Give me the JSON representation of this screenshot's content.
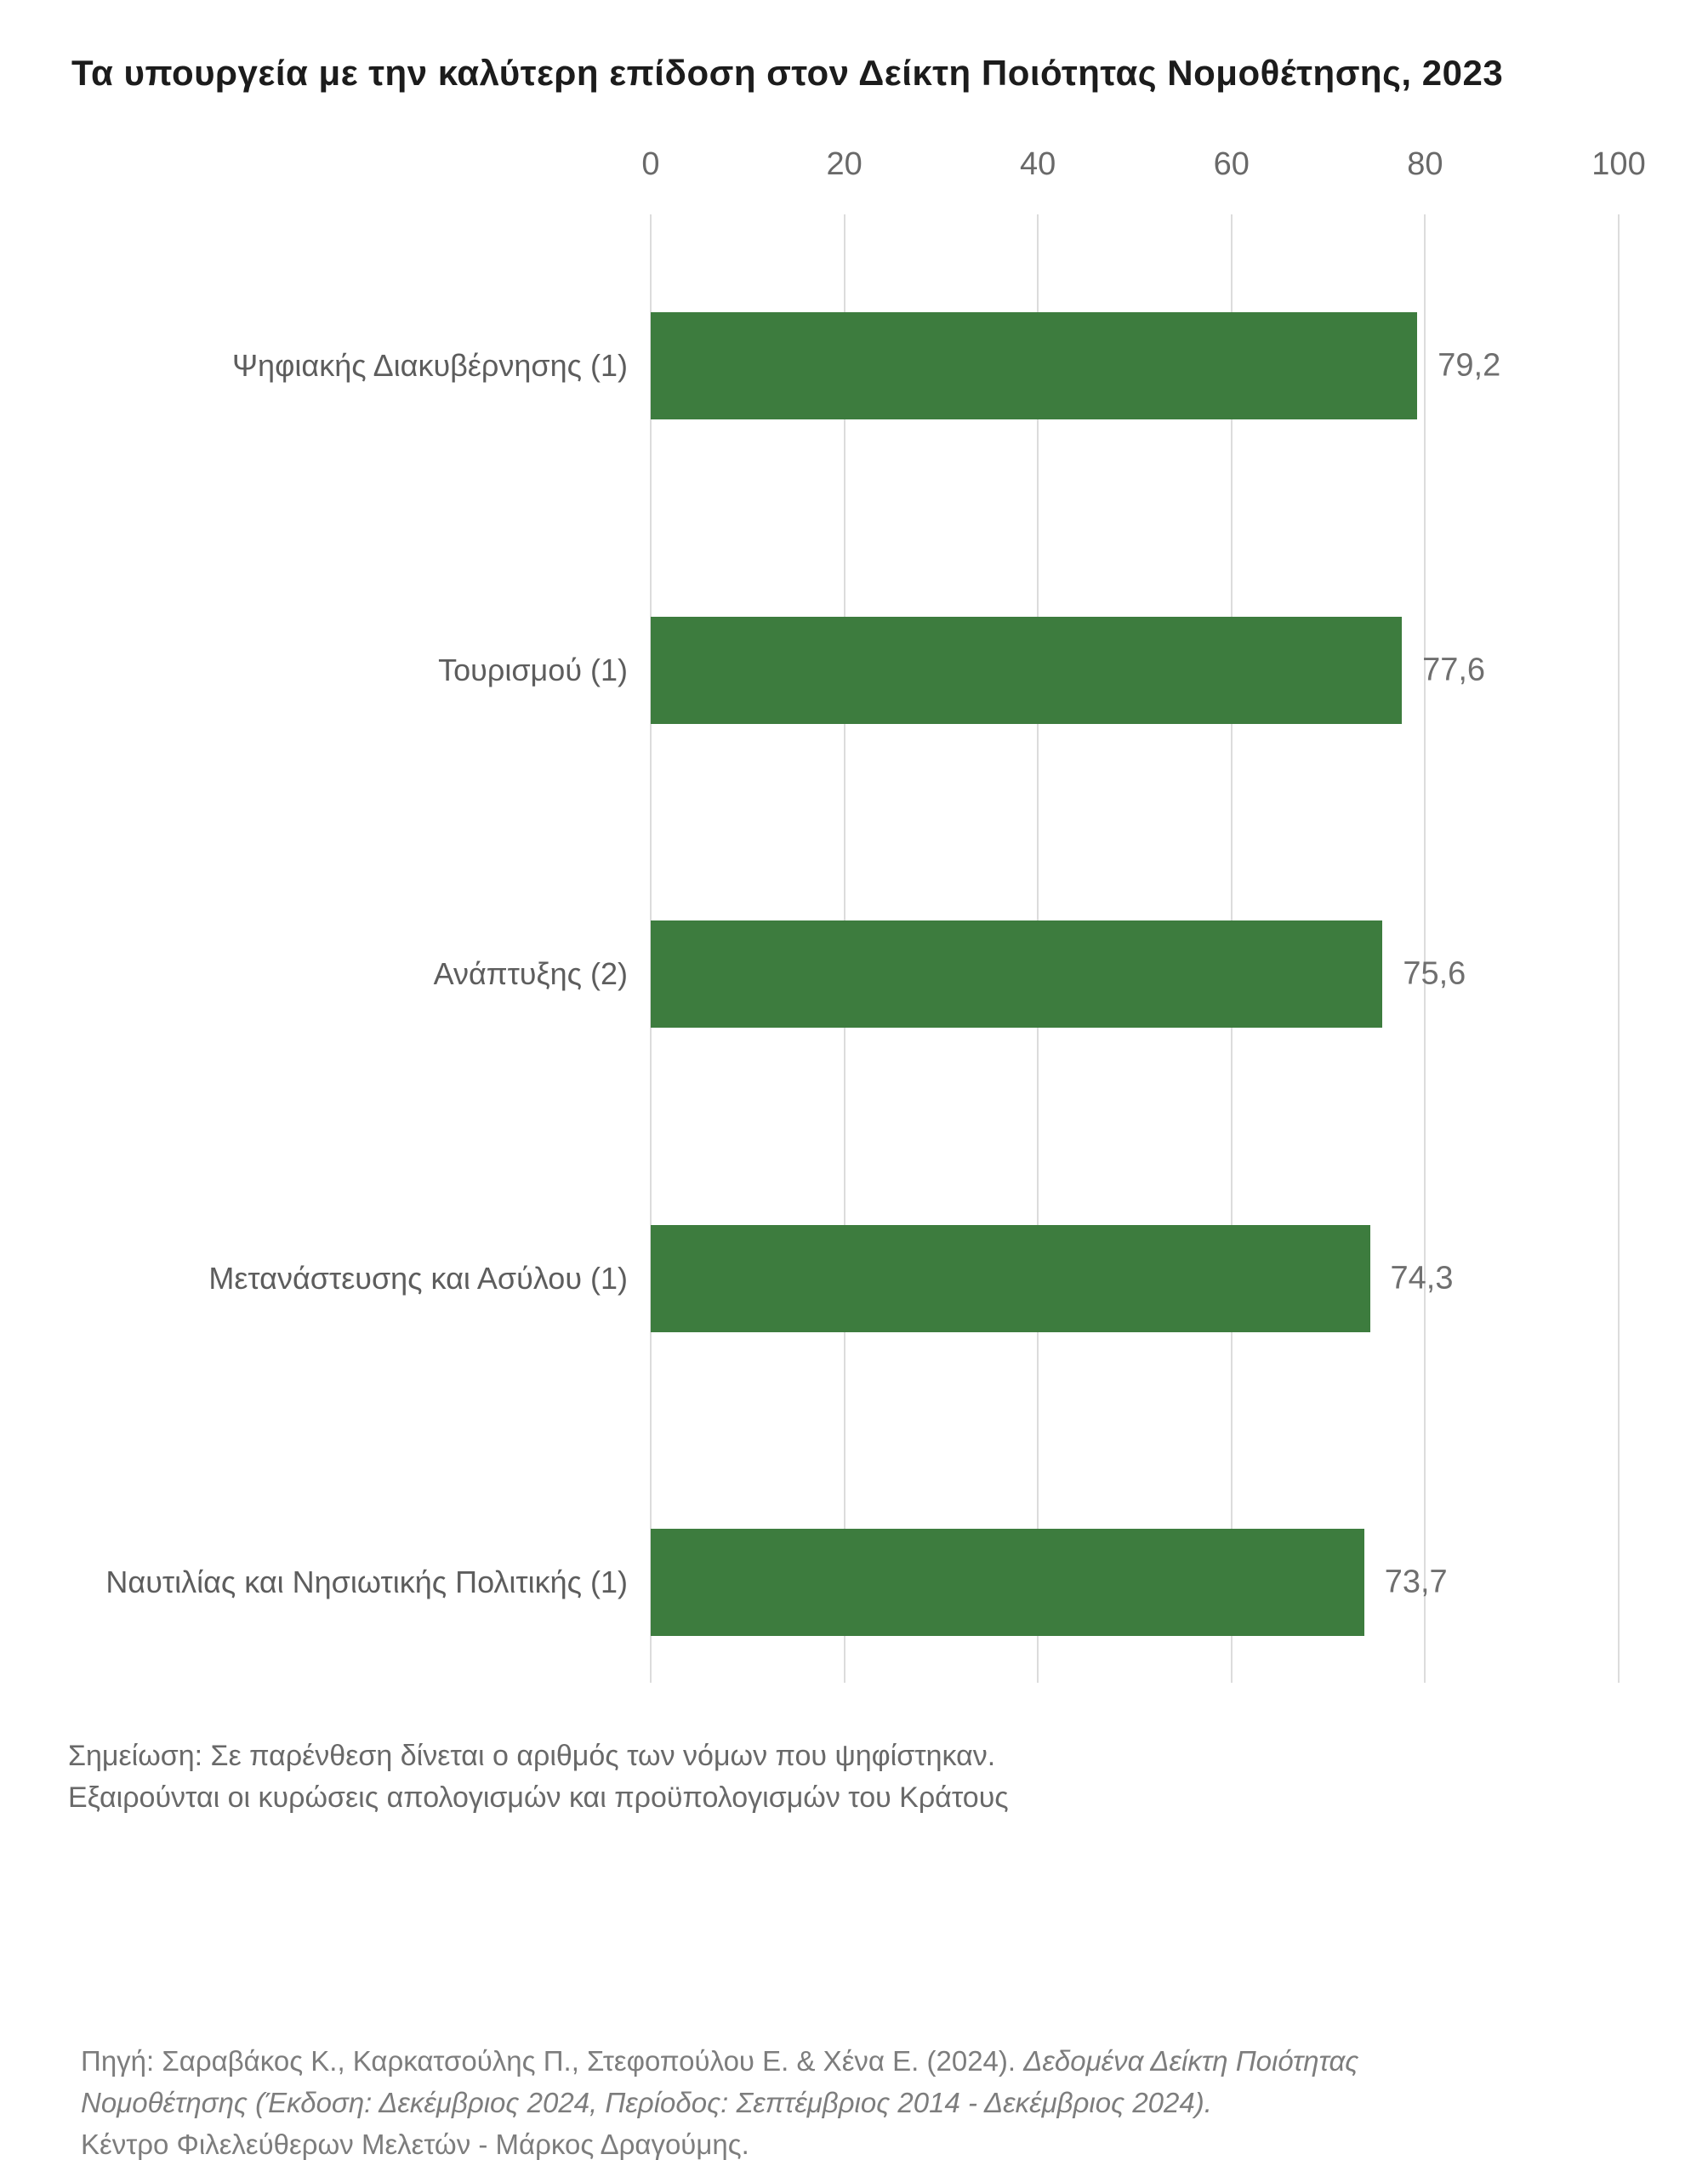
{
  "title": "Τα υπουργεία με την καλύτερη επίδοση στον Δείκτη Ποιότητας Νομοθέτησης, 2023",
  "chart_data": {
    "type": "bar",
    "orientation": "horizontal",
    "title": "Τα υπουργεία με την καλύτερη επίδοση στον Δείκτη Ποιότητας Νομοθέτησης, 2023",
    "categories": [
      "Ψηφιακής Διακυβέρνησης (1)",
      "Τουρισμού (1)",
      "Ανάπτυξης (2)",
      "Μετανάστευσης και Ασύλου (1)",
      "Ναυτιλίας και Νησιωτικής Πολιτικής (1)"
    ],
    "values": [
      79.2,
      77.6,
      75.6,
      74.3,
      73.7
    ],
    "value_labels": [
      "79,2",
      "77,6",
      "75,6",
      "74,3",
      "73,7"
    ],
    "xlim": [
      0,
      100
    ],
    "xticks": [
      0,
      20,
      40,
      60,
      80,
      100
    ],
    "xtick_labels": [
      "0",
      "20",
      "40",
      "60",
      "80",
      "100"
    ],
    "bar_color": "#3d7c3e",
    "gridline_color": "#dcdcdc",
    "grid": true,
    "legend": false,
    "axis_position": "top"
  },
  "note": {
    "line1": "Σημείωση: Σε παρένθεση δίνεται ο αριθμός των νόμων που ψηφίστηκαν.",
    "line2": "Εξαιρούνται οι κυρώσεις απολογισμών και προϋπολογισμών του Κράτους"
  },
  "source": {
    "prefix": "Πηγή: Σαραβάκος Κ., Καρκατσούλης Π., Στεφοπούλου Ε. & Χένα Ε. (2024). ",
    "italic_part": "Δεδομένα Δείκτη Ποιότητας Νομοθέτησης (Έκδοση: Δεκέμβριος 2024, Περίοδος: Σεπτέμβριος 2014 - Δεκέμβριος 2024).",
    "line3": "Κέντρο Φιλελεύθερων Μελετών - Μάρκος Δραγούμης."
  }
}
